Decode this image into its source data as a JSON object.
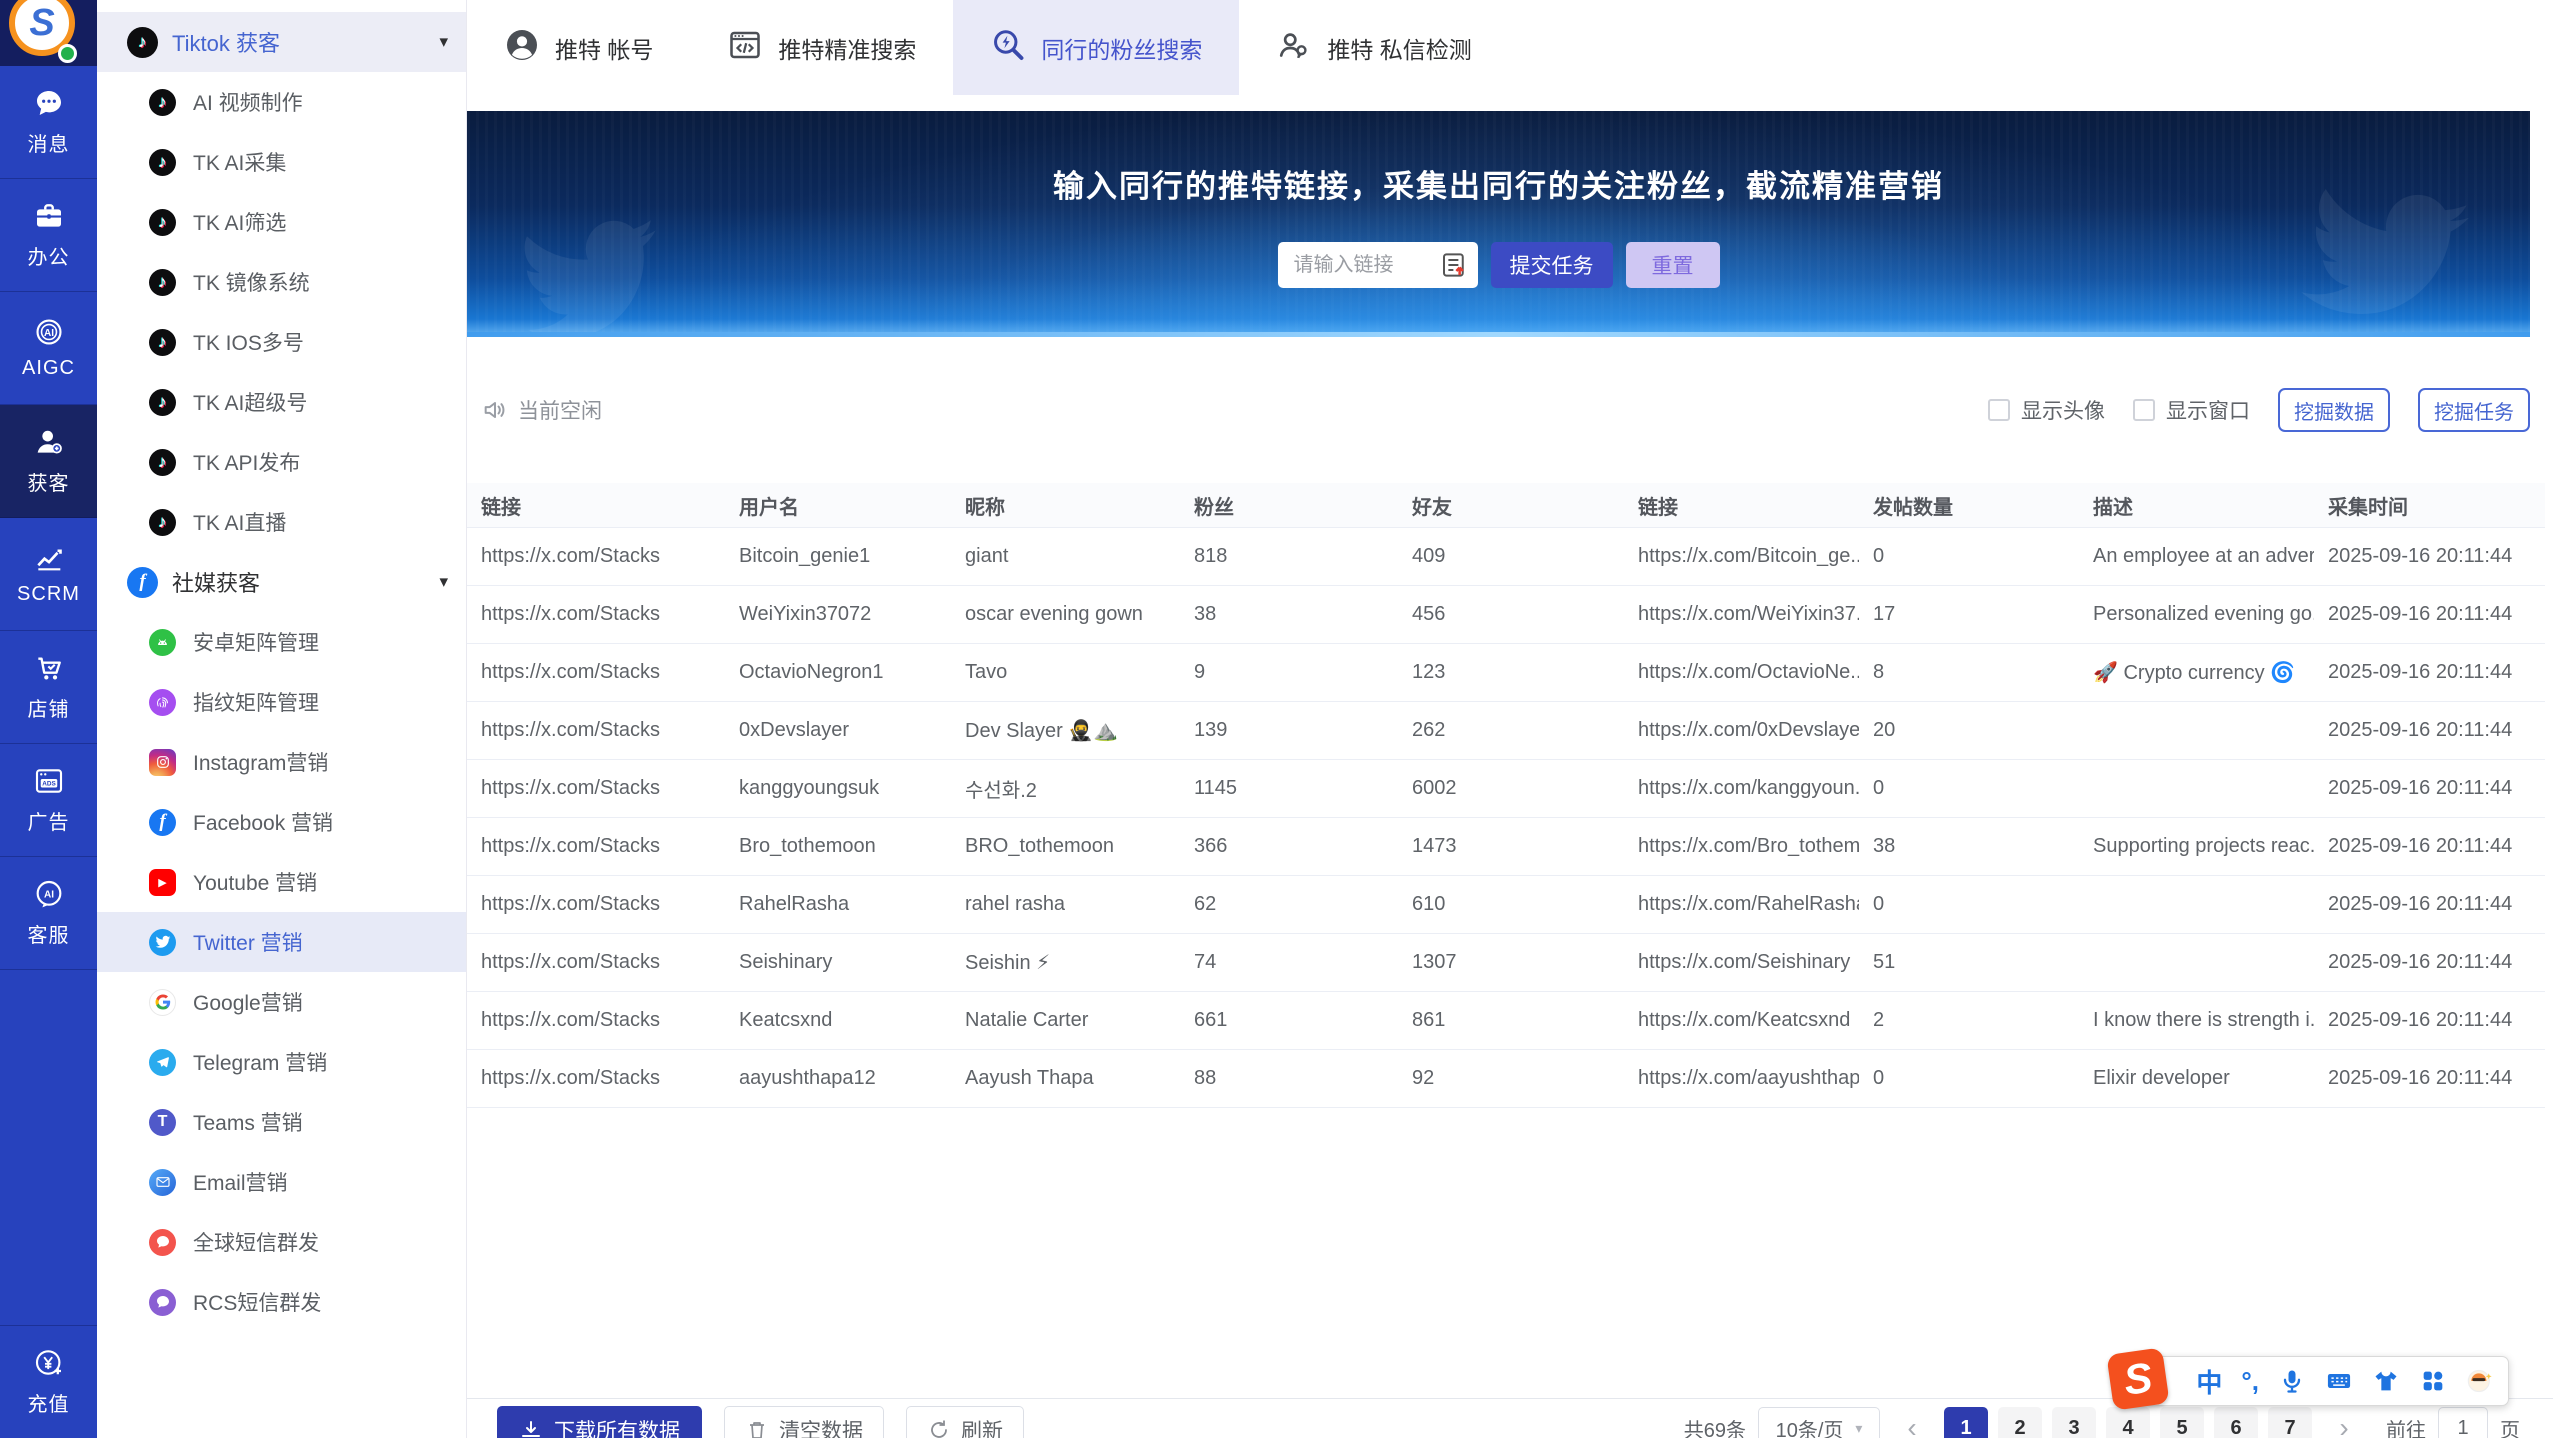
{
  "palette": {
    "rail_bg": "#2742bd",
    "rail_active": "#182464",
    "accent": "#4565d0",
    "submit_btn": "#3c4bc4",
    "reset_btn_bg": "#cfc7f3",
    "reset_btn_text": "#7e6ade",
    "pager_active": "#2e3cae",
    "banner_top": "#0a1c3e",
    "banner_bottom": "#64b5f6"
  },
  "rail": {
    "logo_letter": "S",
    "items": [
      {
        "label": "消息",
        "icon": "chat-icon",
        "active": false
      },
      {
        "label": "办公",
        "icon": "briefcase-icon",
        "active": false
      },
      {
        "label": "AIGC",
        "icon": "aigc-icon",
        "active": false
      },
      {
        "label": "获客",
        "icon": "acquire-icon",
        "active": true
      },
      {
        "label": "SCRM",
        "icon": "chart-icon",
        "active": false
      },
      {
        "label": "店铺",
        "icon": "shop-icon",
        "active": false
      },
      {
        "label": "广告",
        "icon": "ads-icon",
        "active": false
      },
      {
        "label": "客服",
        "icon": "service-icon",
        "active": false
      }
    ],
    "bottom_item": {
      "label": "充值",
      "icon": "recharge-icon"
    }
  },
  "sidebar": {
    "group1": {
      "label": "Tiktok 获客",
      "icon": "tiktok-icon",
      "active": true
    },
    "group1_items": [
      "AI 视频制作",
      "TK AI采集",
      "TK AI筛选",
      "TK 镜像系统",
      "TK IOS多号",
      "TK AI超级号",
      "TK API发布",
      "TK AI直播"
    ],
    "group2": {
      "label": "社媒获客",
      "icon": "facebook-icon",
      "active": false
    },
    "group2_items": [
      {
        "label": "安卓矩阵管理",
        "icon": "android-icon",
        "active": false
      },
      {
        "label": "指纹矩阵管理",
        "icon": "fingerprint-icon",
        "active": false
      },
      {
        "label": "Instagram营销",
        "icon": "instagram-icon",
        "active": false
      },
      {
        "label": "Facebook 营销",
        "icon": "facebook-icon",
        "active": false
      },
      {
        "label": "Youtube 营销",
        "icon": "youtube-icon",
        "active": false
      },
      {
        "label": "Twitter 营销",
        "icon": "twitter-icon",
        "active": true
      },
      {
        "label": "Google营销",
        "icon": "google-icon",
        "active": false
      },
      {
        "label": "Telegram 营销",
        "icon": "telegram-icon",
        "active": false
      },
      {
        "label": "Teams 营销",
        "icon": "teams-icon",
        "active": false
      },
      {
        "label": "Email营销",
        "icon": "email-icon",
        "active": false
      },
      {
        "label": "全球短信群发",
        "icon": "sms-icon",
        "active": false
      },
      {
        "label": "RCS短信群发",
        "icon": "rcs-icon",
        "active": false
      }
    ]
  },
  "tabs": [
    {
      "label": "推特 帐号",
      "icon": "user-avatar-icon",
      "active": false
    },
    {
      "label": "推特精准搜索",
      "icon": "browser-code-icon",
      "active": false
    },
    {
      "label": "同行的粉丝搜索",
      "icon": "search-bolt-icon",
      "active": true
    },
    {
      "label": "推特 私信检测",
      "icon": "users-icon",
      "active": false
    }
  ],
  "banner": {
    "title": "输入同行的推特链接，采集出同行的关注粉丝，截流精准营销",
    "input_placeholder": "请输入链接",
    "submit_label": "提交任务",
    "reset_label": "重置"
  },
  "toolbar": {
    "status": "当前空闲",
    "checkbox_avatar": "显示头像",
    "checkbox_window": "显示窗口",
    "mine_data_label": "挖掘数据",
    "mine_task_label": "挖掘任务"
  },
  "table": {
    "headers": [
      "链接",
      "用户名",
      "昵称",
      "粉丝",
      "好友",
      "链接",
      "发帖数量",
      "描述",
      "采集时间"
    ],
    "rows": [
      [
        "https://x.com/Stacks",
        "Bitcoin_genie1",
        "giant",
        "818",
        "409",
        "https://x.com/Bitcoin_ge...",
        "0",
        "An employee at an adver...",
        "2025-09-16 20:11:44"
      ],
      [
        "https://x.com/Stacks",
        "WeiYixin37072",
        "oscar evening gown",
        "38",
        "456",
        "https://x.com/WeiYixin37...",
        "17",
        "Personalized evening go...",
        "2025-09-16 20:11:44"
      ],
      [
        "https://x.com/Stacks",
        "OctavioNegron1",
        "Tavo",
        "9",
        "123",
        "https://x.com/OctavioNe...",
        "8",
        "🚀 Crypto currency 🌀",
        "2025-09-16 20:11:44"
      ],
      [
        "https://x.com/Stacks",
        "0xDevslayer",
        "Dev Slayer 🥷⛰️",
        "139",
        "262",
        "https://x.com/0xDevslayer",
        "20",
        "",
        "2025-09-16 20:11:44"
      ],
      [
        "https://x.com/Stacks",
        "kanggyoungsuk",
        "수선화.2",
        "1145",
        "6002",
        "https://x.com/kanggyoun...",
        "0",
        "",
        "2025-09-16 20:11:44"
      ],
      [
        "https://x.com/Stacks",
        "Bro_tothemoon",
        "BRO_tothemoon",
        "366",
        "1473",
        "https://x.com/Bro_tothem...",
        "38",
        "Supporting projects reac...",
        "2025-09-16 20:11:44"
      ],
      [
        "https://x.com/Stacks",
        "RahelRasha",
        "rahel rasha",
        "62",
        "610",
        "https://x.com/RahelRasha",
        "0",
        "",
        "2025-09-16 20:11:44"
      ],
      [
        "https://x.com/Stacks",
        "Seishinary",
        "Seishin ⚡",
        "74",
        "1307",
        "https://x.com/Seishinary",
        "51",
        "",
        "2025-09-16 20:11:44"
      ],
      [
        "https://x.com/Stacks",
        "Keatcsxnd",
        "Natalie Carter",
        "661",
        "861",
        "https://x.com/Keatcsxnd",
        "2",
        "I know there is strength i...",
        "2025-09-16 20:11:44"
      ],
      [
        "https://x.com/Stacks",
        "aayushthapa12",
        "Aayush Thapa",
        "88",
        "92",
        "https://x.com/aayushthap...",
        "0",
        "Elixir developer",
        "2025-09-16 20:11:44"
      ]
    ]
  },
  "footer": {
    "download_label": "下载所有数据",
    "clear_label": "清空数据",
    "refresh_label": "刷新",
    "total": "共69条",
    "page_size": "10条/页",
    "pages": [
      "1",
      "2",
      "3",
      "4",
      "5",
      "6",
      "7"
    ],
    "active_page": "1",
    "goto_label": "前往",
    "goto_value": "1",
    "goto_suffix": "页"
  },
  "ime": {
    "logo_letter": "S",
    "lang": "中",
    "punct": "°,"
  }
}
